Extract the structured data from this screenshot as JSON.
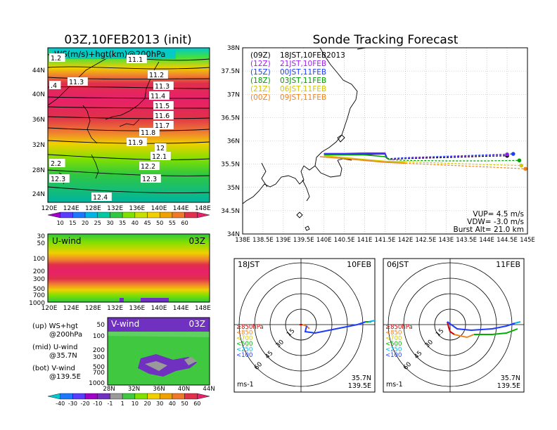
{
  "left_title": "03Z,10FEB2013 (init)",
  "right_title": "Sonde Tracking Forecast",
  "ws_panel": {
    "label": "WS(m/s)+hgt(km)@200hPa",
    "height_labels": [
      "1.2",
      "11.1",
      "11.3",
      ".4",
      "11.2",
      "11.3",
      "11.4",
      "11.5",
      "11.6",
      "11.7",
      "11.8",
      "11.9",
      "12",
      "12.1",
      "12.2",
      "2.2",
      "12.3",
      "12.3",
      "12.4"
    ],
    "lat_ticks": [
      "44N",
      "40N",
      "36N",
      "32N",
      "28N",
      "24N"
    ],
    "lon_ticks": [
      "120E",
      "124E",
      "128E",
      "132E",
      "136E",
      "140E",
      "144E",
      "148E"
    ],
    "colorbar_ticks": [
      "10",
      "15",
      "20",
      "25",
      "30",
      "35",
      "40",
      "45",
      "50",
      "55",
      "60"
    ]
  },
  "uwind_panel": {
    "label": "U-wind",
    "time": "03Z",
    "p_ticks": [
      "30",
      "50",
      "100",
      "200",
      "300",
      "500",
      "700",
      "1000"
    ],
    "lon_ticks": [
      "120E",
      "124E",
      "128E",
      "132E",
      "136E",
      "140E",
      "144E",
      "148E"
    ]
  },
  "vwind_panel": {
    "label": "V-wind",
    "time": "03Z",
    "p_ticks": [
      "50",
      "100",
      "200",
      "300",
      "500",
      "700",
      "1000"
    ],
    "lat_ticks": [
      "28N",
      "32N",
      "36N",
      "40N",
      "44N"
    ],
    "colorbar_ticks": [
      "-40",
      "-30",
      "-20",
      "-10",
      "-1",
      "1",
      "10",
      "20",
      "30",
      "40",
      "50",
      "60"
    ]
  },
  "key_text": [
    {
      "a": "(up) WS+hgt",
      "b": "@200hPa"
    },
    {
      "a": "(mid) U-wind",
      "b": "@35.7N"
    },
    {
      "a": "(bot) V-wind",
      "b": "@139.5E"
    }
  ],
  "track_map": {
    "lat_ticks": [
      "38N",
      "37.5N",
      "37N",
      "36.5N",
      "36N",
      "35.5N",
      "35N",
      "34.5N",
      "34N"
    ],
    "lon_ticks": [
      "138E",
      "138.5E",
      "139E",
      "139.5E",
      "140E",
      "140.5E",
      "141E",
      "141.5E",
      "142E",
      "142.5E",
      "143E",
      "143.5E",
      "144E",
      "144.5E",
      "145E"
    ],
    "legend": [
      {
        "z": "(09Z)",
        "jst": "18JST,10FEB2013",
        "color": "#000000"
      },
      {
        "z": "(12Z)",
        "jst": "21JST,10FEB",
        "color": "#a020f0"
      },
      {
        "z": "(15Z)",
        "jst": "00JST,11FEB",
        "color": "#1e3cff"
      },
      {
        "z": "(18Z)",
        "jst": "03JST,11FEB",
        "color": "#00a000"
      },
      {
        "z": "(21Z)",
        "jst": "06JST,11FEB",
        "color": "#d2c800"
      },
      {
        "z": "(00Z)",
        "jst": "09JST,11FEB",
        "color": "#f0821e"
      }
    ],
    "params": {
      "vup": "VUP= 4.5 m/s",
      "vdw": "VDW= -3.0 m/s",
      "burst": "Burst Alt= 21.0 km"
    }
  },
  "polar_left": {
    "time": "18JST",
    "date": "10FEB",
    "rings": [
      "15",
      "30",
      "45",
      "60"
    ],
    "unit": "ms-1",
    "lat": "35.7N",
    "lon": "139.5E"
  },
  "polar_right": {
    "time": "06JST",
    "date": "11FEB",
    "rings": [
      "15",
      "30",
      "45",
      "60"
    ],
    "unit": "ms-1",
    "lat": "35.7N",
    "lon": "139.5E"
  },
  "polar_levels": [
    {
      "label": "≥850hPa",
      "color": "#d00000"
    },
    {
      "label": "<850",
      "color": "#f0821e"
    },
    {
      "label": "<700",
      "color": "#d2c800"
    },
    {
      "label": "<500",
      "color": "#00b000"
    },
    {
      "label": "<250",
      "color": "#00b4e6"
    },
    {
      "label": "<100",
      "color": "#1e3cff"
    }
  ],
  "chart_data": {
    "type": "line",
    "title": "Sonde Tracking Forecast",
    "xlabel": "",
    "ylabel": "",
    "xlim": [
      138,
      145
    ],
    "ylim": [
      34,
      38
    ],
    "series": [
      {
        "name": "(09Z) 18JST,10FEB2013",
        "color": "#000000",
        "x": [
          140.0,
          140.5,
          141.0,
          141.5,
          141.55,
          141.6,
          142.0,
          143.0,
          144.0,
          144.5
        ],
        "y": [
          35.72,
          35.72,
          35.71,
          35.72,
          35.62,
          35.6,
          35.62,
          35.64,
          35.67,
          35.68
        ]
      },
      {
        "name": "(12Z) 21JST,10FEB",
        "color": "#a020f0",
        "x": [
          140.0,
          140.5,
          141.0,
          141.5,
          141.55,
          141.6,
          142.0,
          143.0,
          144.0,
          144.5
        ],
        "y": [
          35.73,
          35.73,
          35.74,
          35.74,
          35.63,
          35.61,
          35.63,
          35.66,
          35.69,
          35.71
        ]
      },
      {
        "name": "(15Z) 00JST,11FEB",
        "color": "#1e3cff",
        "x": [
          140.0,
          140.5,
          141.0,
          141.5,
          141.55,
          141.6,
          142.0,
          143.0,
          144.0,
          144.65
        ],
        "y": [
          35.72,
          35.72,
          35.72,
          35.72,
          35.63,
          35.62,
          35.64,
          35.67,
          35.7,
          35.72
        ]
      },
      {
        "name": "(18Z) 03JST,11FEB",
        "color": "#00a000",
        "x": [
          140.0,
          140.5,
          141.0,
          141.5,
          141.6,
          142.0,
          143.0,
          144.0,
          144.8
        ],
        "y": [
          35.7,
          35.7,
          35.7,
          35.66,
          35.6,
          35.58,
          35.57,
          35.57,
          35.58
        ]
      },
      {
        "name": "(21Z) 06JST,11FEB",
        "color": "#d2c800",
        "x": [
          140.0,
          140.5,
          141.0,
          141.5,
          142.0,
          143.0,
          144.0,
          144.85
        ],
        "y": [
          35.68,
          35.64,
          35.6,
          35.56,
          35.55,
          35.52,
          35.49,
          35.47
        ]
      },
      {
        "name": "(00Z) 09JST,11FEB",
        "color": "#f0821e",
        "x": [
          139.9,
          140.5,
          141.0,
          141.5,
          142.0,
          143.0,
          144.0,
          144.95
        ],
        "y": [
          35.66,
          35.62,
          35.58,
          35.54,
          35.52,
          35.48,
          35.44,
          35.4
        ]
      }
    ]
  }
}
